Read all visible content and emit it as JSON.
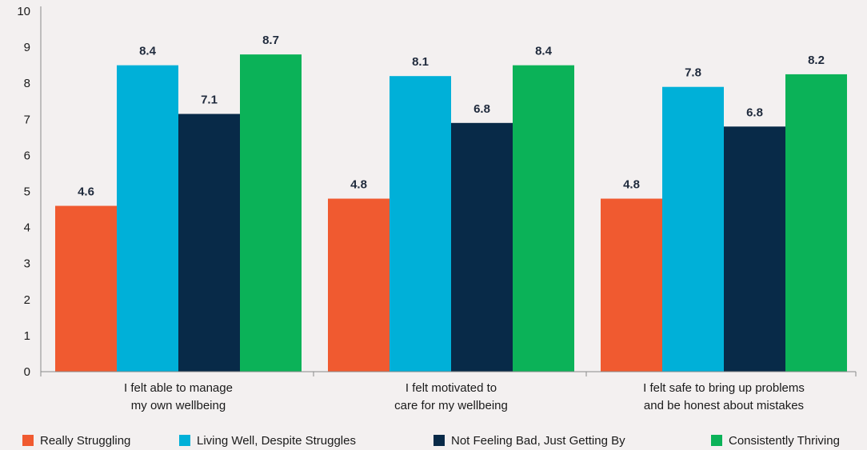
{
  "chart_data": {
    "type": "bar",
    "categories": [
      [
        "I felt able to manage",
        "my own wellbeing"
      ],
      [
        "I felt motivated to",
        "care for my wellbeing"
      ],
      [
        "I felt safe to bring up problems",
        "and be honest about mistakes"
      ]
    ],
    "series": [
      {
        "name": "Really Struggling",
        "color": "#f05a30",
        "values": [
          4.6,
          4.8,
          4.8
        ]
      },
      {
        "name": "Living Well, Despite Struggles",
        "color": "#00b0d8",
        "values": [
          8.4,
          8.1,
          7.8
        ]
      },
      {
        "name": "Not Feeling Bad, Just Getting By",
        "color": "#082a48",
        "values": [
          7.1,
          6.8,
          6.8
        ]
      },
      {
        "name": "Consistently Thriving",
        "color": "#0bb258",
        "values": [
          8.7,
          8.4,
          8.2
        ]
      }
    ],
    "bar_heights": [
      [
        4.6,
        4.8,
        4.8
      ],
      [
        8.5,
        8.2,
        7.9
      ],
      [
        7.15,
        6.9,
        6.8
      ],
      [
        8.8,
        8.5,
        8.25
      ]
    ],
    "ylim": [
      0,
      10
    ],
    "yticks": [
      0,
      1,
      2,
      3,
      4,
      5,
      6,
      7,
      8,
      9,
      10
    ],
    "grid": false,
    "legend_position": "bottom"
  }
}
